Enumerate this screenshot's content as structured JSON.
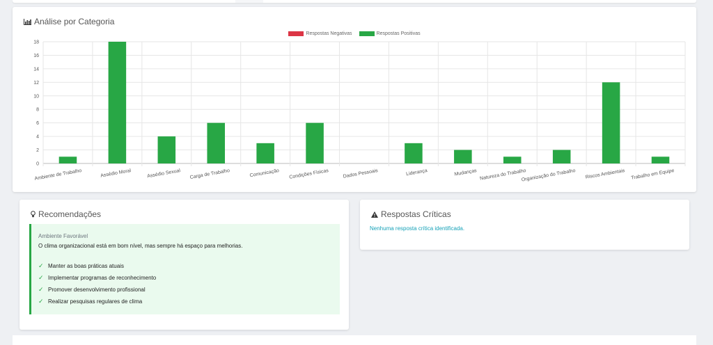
{
  "chart_section": {
    "title": "Análise por Categoria",
    "icon": "bar-chart-icon"
  },
  "chart_data": {
    "type": "bar",
    "categories": [
      "Ambiente de Trabalho",
      "Assédio Moral",
      "Assédio Sexual",
      "Carga de Trabalho",
      "Comunicação",
      "Condições Físicas",
      "Dados Pessoais",
      "Liderança",
      "Mudanças",
      "Natureza do Trabalho",
      "Organização do Trabalho",
      "Riscos Ambientais",
      "Trabalho em Equipe"
    ],
    "series": [
      {
        "name": "Respostas Negativas",
        "color": "#dc3545",
        "values": [
          0,
          0,
          0,
          0,
          0,
          0,
          0,
          0,
          0,
          0,
          0,
          0,
          0
        ]
      },
      {
        "name": "Respostas Positivas",
        "color": "#28a745",
        "values": [
          1,
          18,
          4,
          6,
          3,
          6,
          0,
          3,
          2,
          1,
          2,
          12,
          1
        ]
      }
    ],
    "y_ticks": [
      "0",
      "2",
      "4",
      "6",
      "8",
      "10",
      "12",
      "14",
      "16",
      "18"
    ],
    "ylim": [
      0,
      18
    ],
    "grid": true,
    "legend_position": "top-center"
  },
  "recommendations": {
    "title": "Recomendações",
    "icon": "lightbulb-icon",
    "subtitle": "Ambiente Favorável",
    "message": "O clima organizacional está em bom nível, mas sempre há espaço para melhorias.",
    "check_glyph": "✓",
    "items": [
      "Manter as boas práticas atuais",
      "Implementar programas de reconhecimento",
      "Promover desenvolvimento profissional",
      "Realizar pesquisas regulares de clima"
    ]
  },
  "critical": {
    "title": "Respostas Críticas",
    "icon": "warning-icon",
    "message": "Nenhuma resposta crítica identificada."
  }
}
